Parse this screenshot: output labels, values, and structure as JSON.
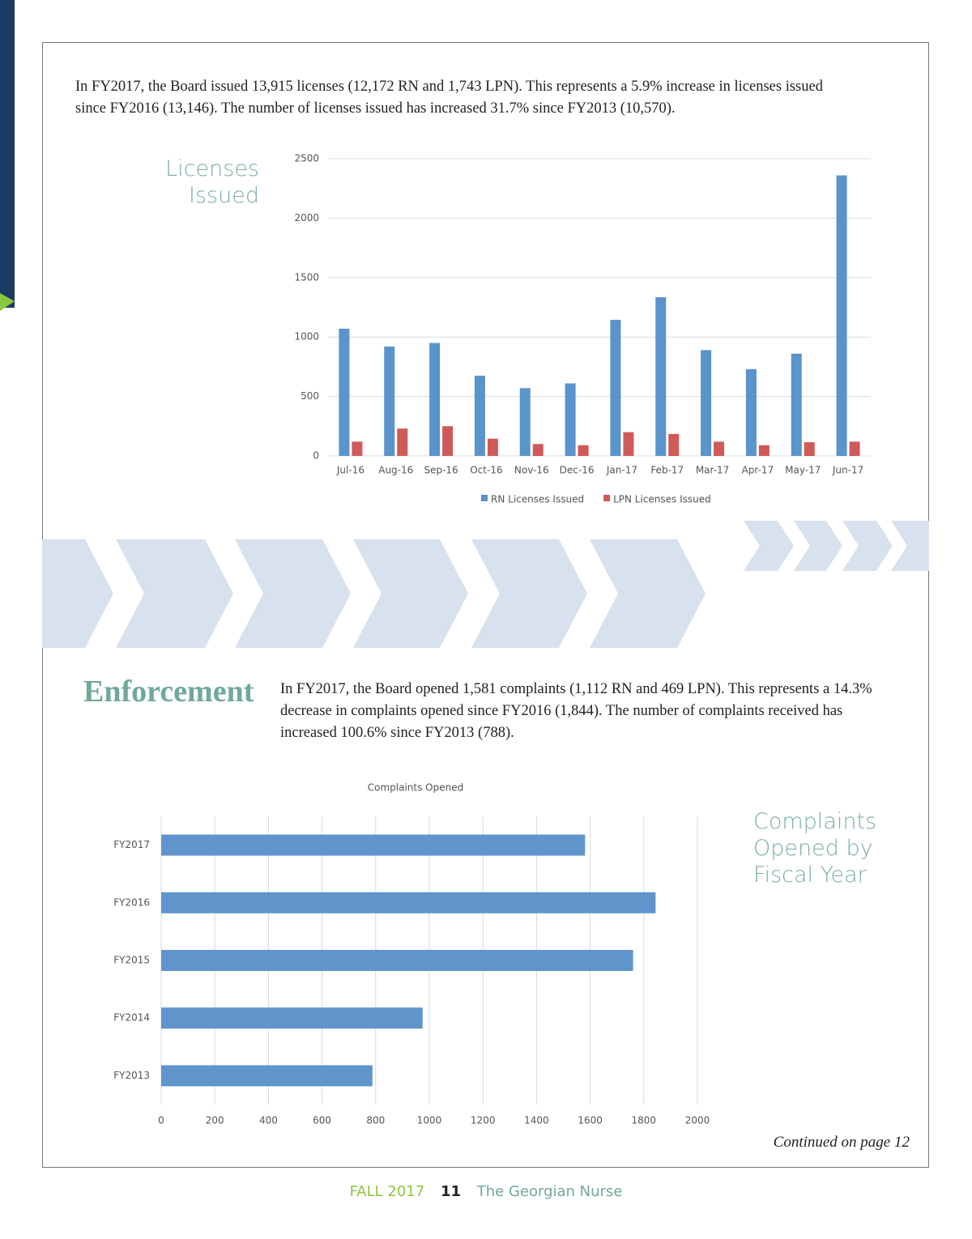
{
  "intro_text": "In FY2017, the Board issued 13,915 licenses (12,172 RN and 1,743 LPN). This represents a 5.9% increase in licenses issued since FY2016 (13,146). The number of licenses issued has increased 31.7% since FY2013 (10,570).",
  "enforcement": {
    "heading": "Enforcement",
    "text": "In FY2017, the Board opened 1,581 complaints (1,112 RN and 469 LPN). This represents a 14.3% decrease in complaints opened since FY2016 (1,844). The number of complaints received has increased 100.6% since FY2013 (788)."
  },
  "complaints_side_label": "Complaints Opened by Fiscal Year",
  "continued": "Continued on page 12",
  "footer": {
    "issue": "FALL 2017",
    "page": "11",
    "publication": "The Georgian Nurse"
  },
  "chart_data": [
    {
      "type": "bar",
      "title": "Licenses Issued",
      "categories": [
        "Jul-16",
        "Aug-16",
        "Sep-16",
        "Oct-16",
        "Nov-16",
        "Dec-16",
        "Jan-17",
        "Feb-17",
        "Mar-17",
        "Apr-17",
        "May-17",
        "Jun-17"
      ],
      "series": [
        {
          "name": "RN Licenses Issued",
          "color": "#5b93cb",
          "values": [
            1070,
            920,
            950,
            675,
            570,
            610,
            1145,
            1335,
            890,
            730,
            860,
            2360
          ]
        },
        {
          "name": "LPN Licenses Issued",
          "color": "#d05a58",
          "values": [
            120,
            230,
            250,
            145,
            100,
            90,
            200,
            185,
            120,
            90,
            115,
            120
          ]
        }
      ],
      "ylim": [
        0,
        2500
      ],
      "yticks": [
        0,
        500,
        1000,
        1500,
        2000,
        2500
      ],
      "grid": true,
      "legend": "bottom"
    },
    {
      "type": "bar",
      "orientation": "horizontal",
      "title": "Complaints Opened",
      "categories": [
        "FY2017",
        "FY2016",
        "FY2015",
        "FY2014",
        "FY2013"
      ],
      "values": [
        1581,
        1844,
        1760,
        975,
        788
      ],
      "color": "#5f95cb",
      "xlim": [
        0,
        2000
      ],
      "xticks": [
        0,
        200,
        400,
        600,
        800,
        1000,
        1200,
        1400,
        1600,
        1800,
        2000
      ],
      "grid": true
    }
  ]
}
